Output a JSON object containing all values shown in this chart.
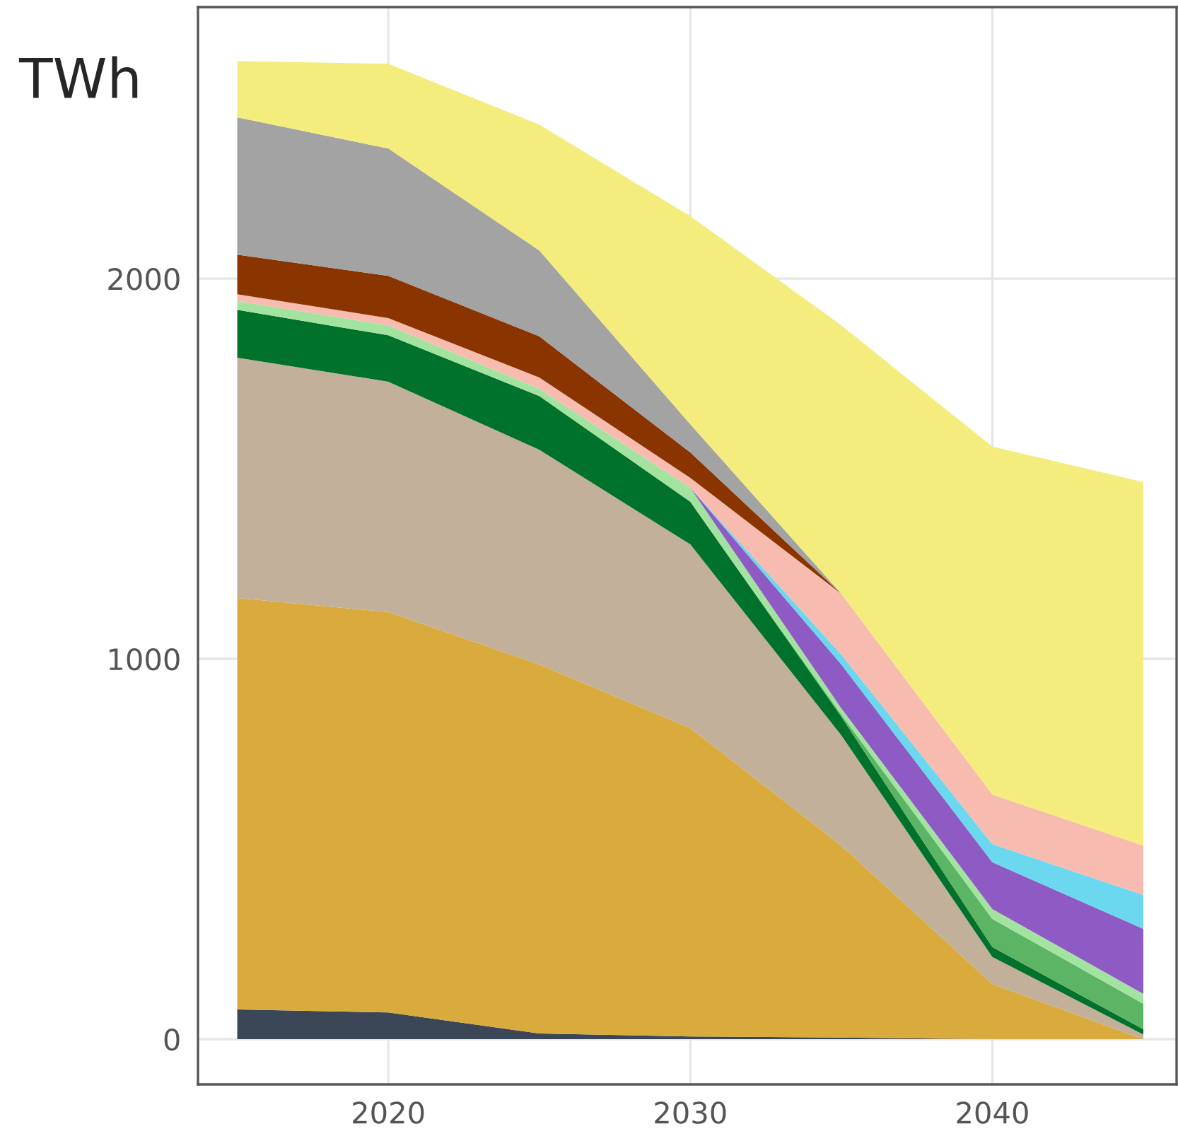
{
  "chart_data": {
    "type": "area",
    "stacked": true,
    "ylabel": "TWh",
    "x": [
      2015,
      2020,
      2025,
      2030,
      2035,
      2040,
      2045
    ],
    "series": [
      {
        "color": "#3b4656",
        "values": [
          78,
          70,
          15,
          7,
          4,
          0,
          0
        ]
      },
      {
        "color": "#d8ab3c",
        "values": [
          1082,
          1053,
          970,
          811,
          505,
          145,
          0
        ]
      },
      {
        "color": "#c2b09a",
        "values": [
          632,
          606,
          565,
          483,
          290,
          71,
          12
        ]
      },
      {
        "color": "#01722b",
        "values": [
          126,
          122,
          141,
          112,
          49,
          26,
          14
        ]
      },
      {
        "color": "#5cb564",
        "values": [
          0,
          0,
          0,
          0,
          5,
          74,
          67
        ]
      },
      {
        "color": "#a3e3a0",
        "values": [
          23,
          26,
          19,
          37,
          17,
          26,
          26
        ]
      },
      {
        "color": "#8e5bc4",
        "values": [
          0,
          0,
          0,
          0,
          115,
          123,
          171
        ]
      },
      {
        "color": "#6bd8ef",
        "values": [
          0,
          0,
          0,
          0,
          26,
          48,
          89
        ]
      },
      {
        "color": "#f7bcaf",
        "values": [
          18,
          19,
          30,
          26,
          160,
          130,
          130
        ]
      },
      {
        "color": "#8a3500",
        "values": [
          104,
          111,
          108,
          67,
          0,
          0,
          0
        ]
      },
      {
        "color": "#a3a3a3",
        "values": [
          361,
          335,
          226,
          74,
          0,
          0,
          0
        ]
      },
      {
        "color": "#f4ec7c",
        "values": [
          148,
          223,
          331,
          547,
          706,
          915,
          956
        ]
      }
    ],
    "xlim": [
      2013.7,
      2046.1
    ],
    "ylim": [
      -119,
      2714
    ],
    "xticks": [
      2020,
      2030,
      2040
    ],
    "yticks": [
      0,
      1000,
      2000
    ],
    "grid": true
  }
}
